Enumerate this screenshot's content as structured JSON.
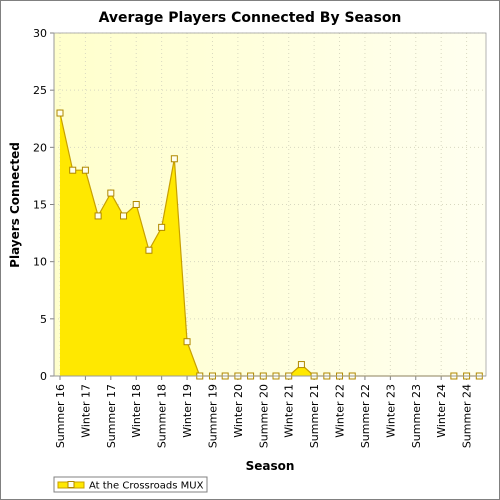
{
  "chart_data": {
    "type": "area",
    "title": "Average Players Connected By Season",
    "xlabel": "Season",
    "ylabel": "Players Connected",
    "ylim": [
      0,
      30
    ],
    "yticks": [
      0,
      5,
      10,
      15,
      20,
      25,
      30
    ],
    "x_tick_labels": [
      "Summer 16",
      "Winter 17",
      "Summer 17",
      "Winter 18",
      "Summer 18",
      "Winter 19",
      "Summer 19",
      "Winter 20",
      "Summer 20",
      "Winter 21",
      "Summer 21",
      "Winter 22",
      "Summer 22",
      "Winter 23",
      "Summer 23",
      "Winter 24",
      "Summer 24"
    ],
    "grid": true,
    "legend_position": "bottom-left",
    "colors": {
      "fill": "#ffe800",
      "line": "#c8a000",
      "marker_fill": "#ffffee",
      "marker_stroke": "#b08800",
      "background": "#fffff0"
    },
    "series": [
      {
        "name": "At the Crossroads MUX",
        "x": [
          0,
          0.5,
          1,
          1.5,
          2,
          2.5,
          3,
          3.5,
          4,
          4.5,
          5,
          5.5,
          6,
          6.5,
          7,
          7.5,
          8,
          8.5,
          9,
          9.5,
          10,
          10.5,
          11,
          11.5,
          15.5,
          16,
          16.5
        ],
        "values": [
          23,
          18,
          18,
          14,
          16,
          14,
          15,
          11,
          13,
          19,
          3,
          0,
          0,
          0,
          0,
          0,
          0,
          0,
          0,
          1,
          0,
          0,
          0,
          0,
          0,
          0,
          0
        ]
      }
    ]
  }
}
